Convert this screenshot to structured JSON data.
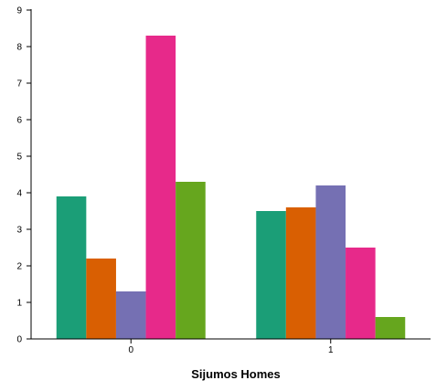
{
  "chart_data": {
    "type": "bar",
    "title": "",
    "xlabel": "Sijumos Homes",
    "ylabel": "",
    "ylim": [
      0,
      9
    ],
    "yticks": [
      0,
      1,
      2,
      3,
      4,
      5,
      6,
      7,
      8,
      9
    ],
    "categories": [
      "0",
      "1"
    ],
    "grid": false,
    "legend": "none",
    "series": [
      {
        "color": "#1b9e77",
        "values": [
          3.9,
          3.5
        ]
      },
      {
        "color": "#d95f02",
        "values": [
          2.2,
          3.6
        ]
      },
      {
        "color": "#7570b3",
        "values": [
          1.3,
          4.2
        ]
      },
      {
        "color": "#e7298a",
        "values": [
          8.3,
          2.5
        ]
      },
      {
        "color": "#66a61e",
        "values": [
          4.3,
          0.6
        ]
      }
    ]
  }
}
